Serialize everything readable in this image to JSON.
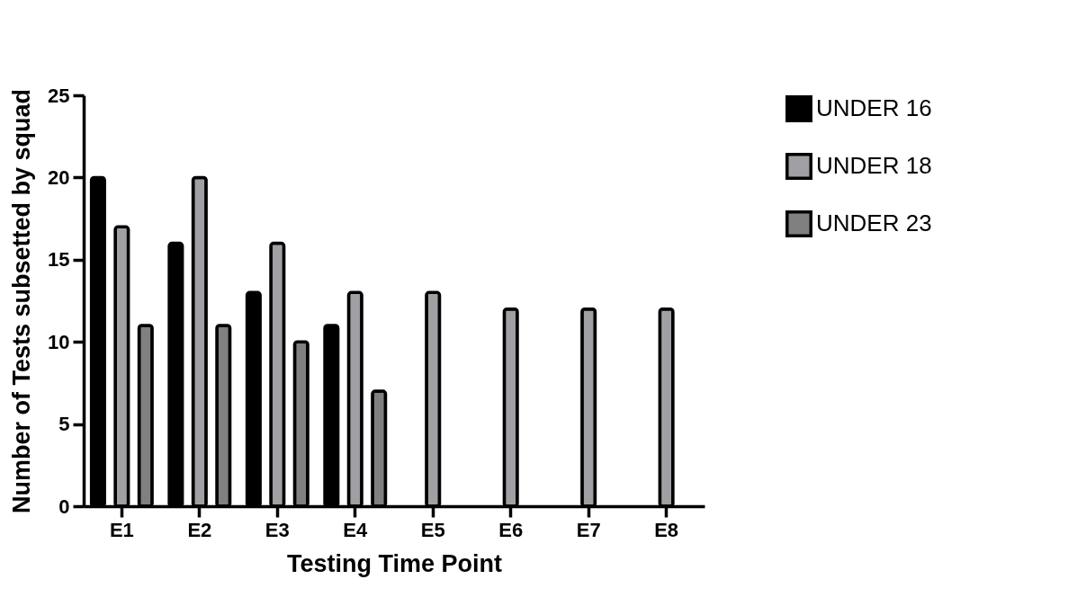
{
  "chart_data": {
    "type": "bar",
    "xlabel": "Testing Time Point",
    "ylabel": "Number of Tests subsetted by squad",
    "categories": [
      "E1",
      "E2",
      "E3",
      "E4",
      "E5",
      "E6",
      "E7",
      "E8"
    ],
    "series": [
      {
        "name": "UNDER 16",
        "color": "#000000",
        "values": [
          20,
          16,
          13,
          11,
          null,
          null,
          null,
          null
        ]
      },
      {
        "name": "UNDER 18",
        "color": "#a0a0a4",
        "values": [
          17,
          20,
          16,
          13,
          13,
          12,
          12,
          12
        ]
      },
      {
        "name": "UNDER 23",
        "color": "#808080",
        "values": [
          11,
          11,
          10,
          7,
          null,
          null,
          null,
          null
        ]
      }
    ],
    "ylim": [
      0,
      25
    ],
    "yticks": [
      0,
      5,
      10,
      15,
      20,
      25
    ],
    "grid": false,
    "legend": "right"
  }
}
